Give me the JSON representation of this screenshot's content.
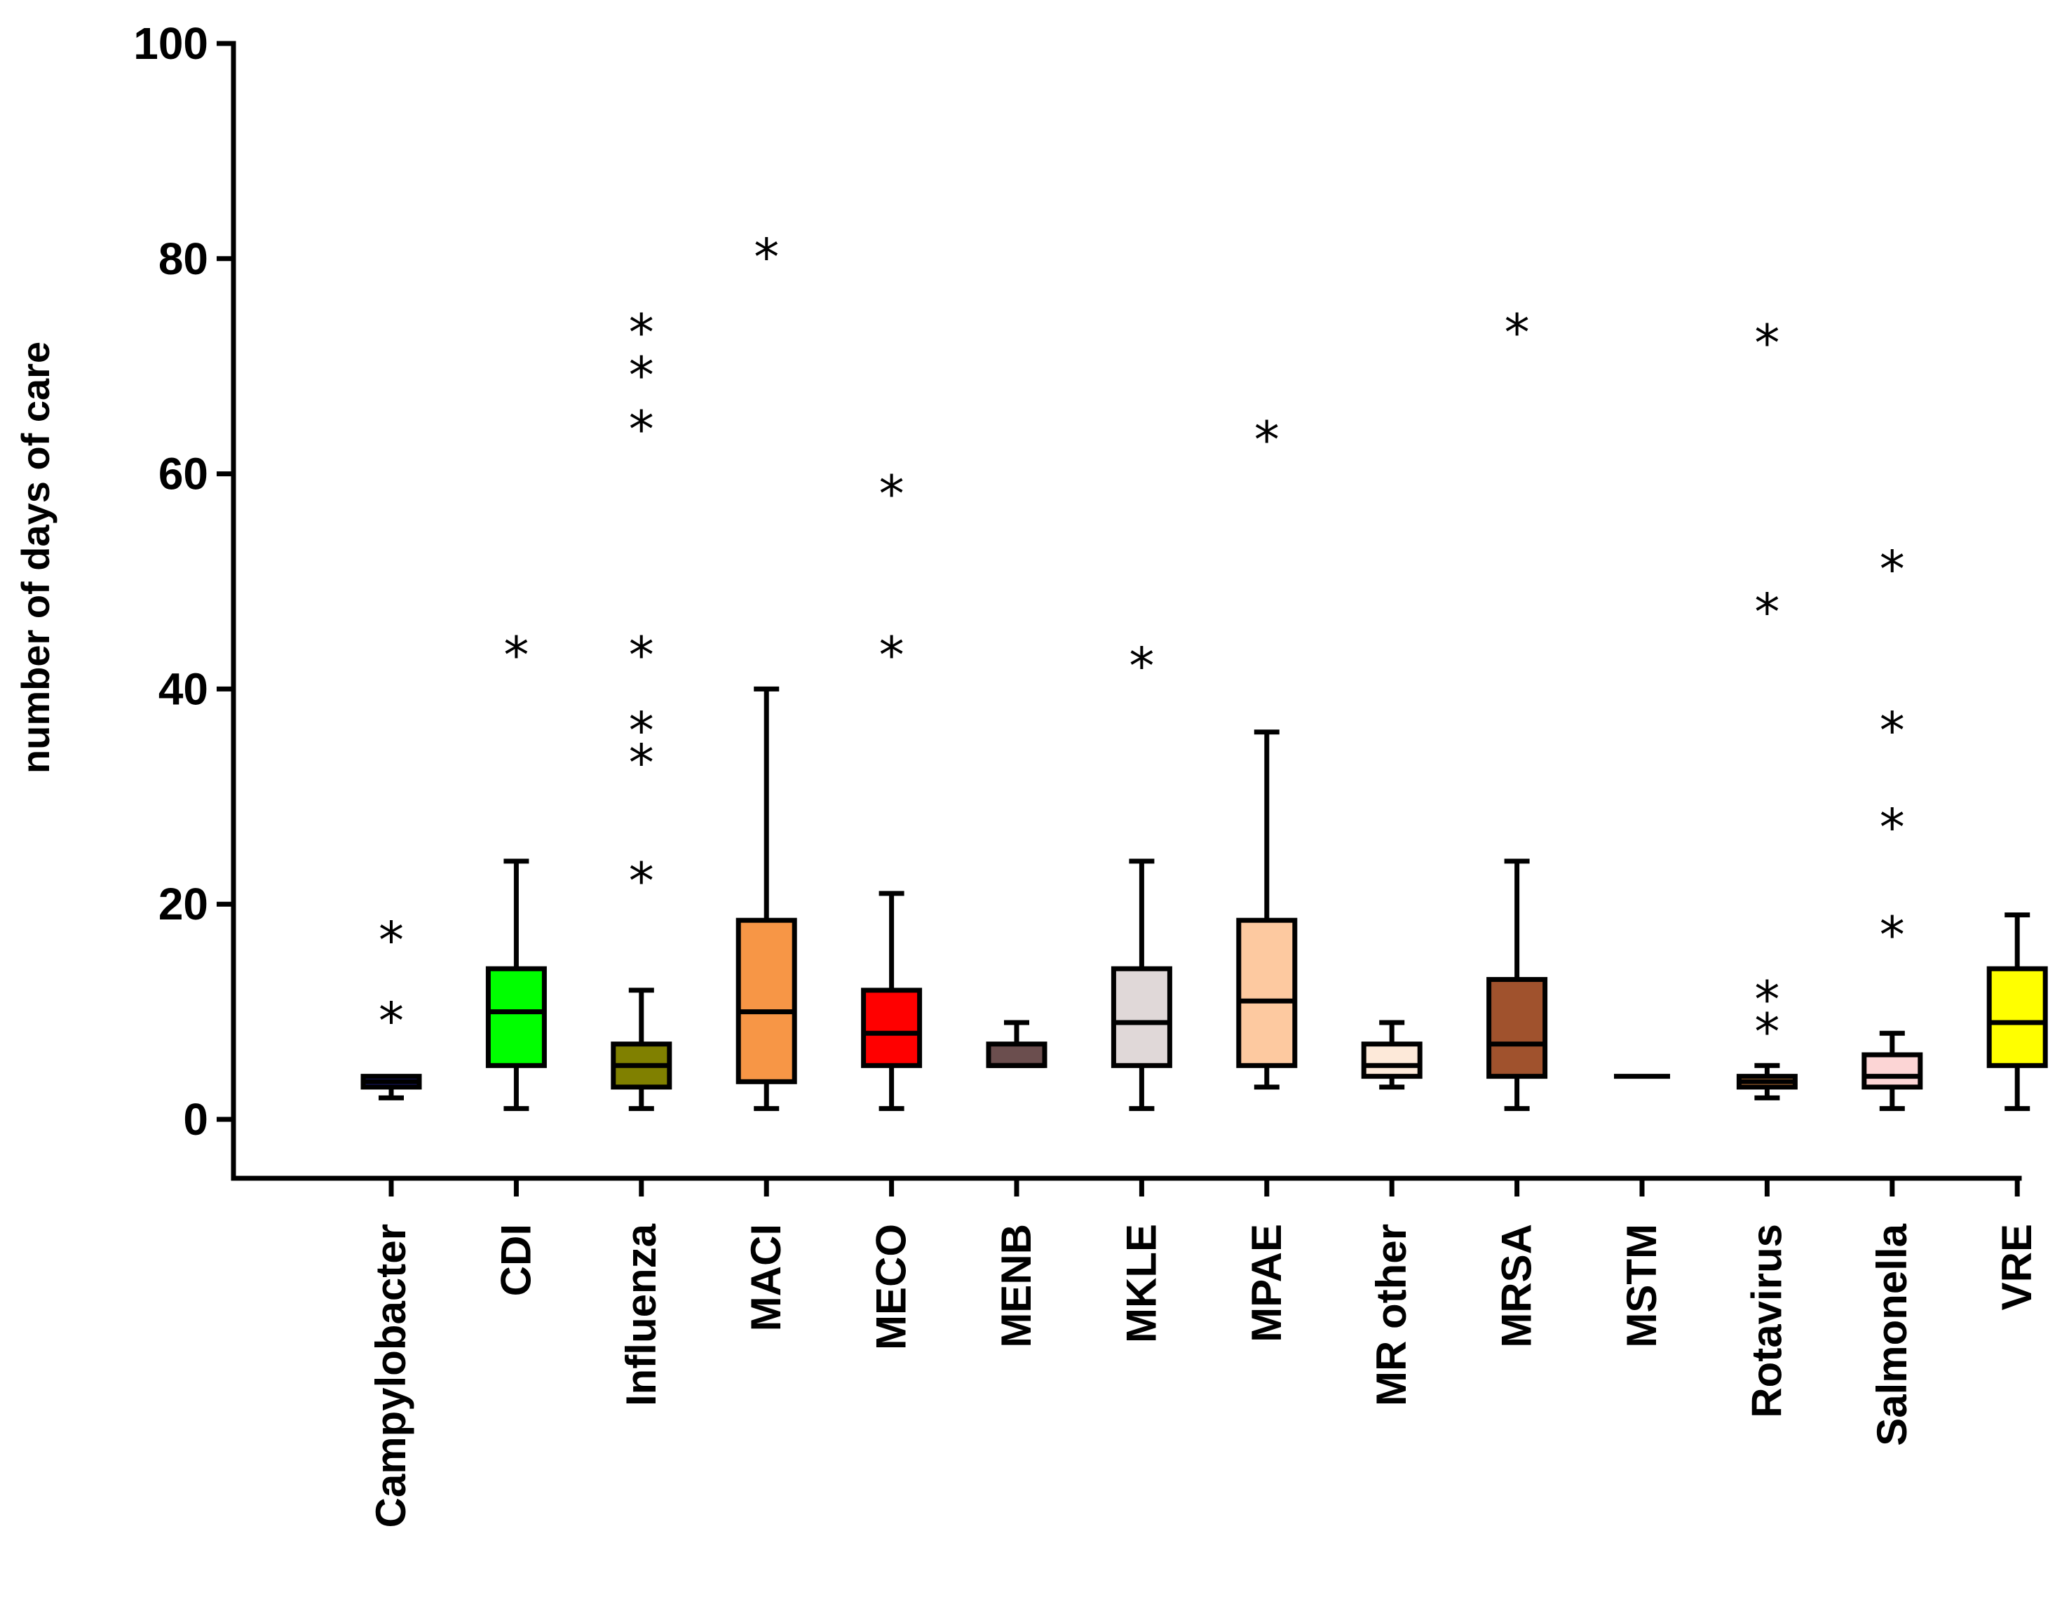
{
  "chart_data": {
    "type": "boxplot",
    "title": "",
    "xlabel": "",
    "ylabel": "number of days of care",
    "ylim": [
      0,
      100
    ],
    "yticks": [
      0,
      20,
      40,
      60,
      80,
      100
    ],
    "grid": false,
    "outlier_marker": "*",
    "categories": [
      "Campylobacter",
      "CDI",
      "Influenza",
      "MACI",
      "MECO",
      "MENB",
      "MKLE",
      "MPAE",
      "MR other",
      "MRSA",
      "MSTM",
      "Rotavirus",
      "Salmonella",
      "VRE"
    ],
    "boxes": [
      {
        "name": "Campylobacter",
        "color": "#1f1f8f",
        "min": 2,
        "q1": 3,
        "median": 3.5,
        "q3": 4,
        "max": 4,
        "outliers": [
          10,
          17.5
        ]
      },
      {
        "name": "CDI",
        "color": "#00ff00",
        "min": 1,
        "q1": 5,
        "median": 10,
        "q3": 14,
        "max": 24,
        "outliers": [
          44
        ]
      },
      {
        "name": "Influenza",
        "color": "#808000",
        "min": 1,
        "q1": 3,
        "median": 5,
        "q3": 7,
        "max": 12,
        "outliers": [
          23,
          34,
          37,
          44,
          65,
          70,
          74
        ]
      },
      {
        "name": "MACI",
        "color": "#f79646",
        "min": 1,
        "q1": 3.5,
        "median": 10,
        "q3": 18.5,
        "max": 40,
        "outliers": [
          81
        ]
      },
      {
        "name": "MECO",
        "color": "#ff0000",
        "min": 1,
        "q1": 5,
        "median": 8,
        "q3": 12,
        "max": 21,
        "outliers": [
          44,
          59
        ]
      },
      {
        "name": "MENB",
        "color": "#6b4e4e",
        "min": 5,
        "q1": 5,
        "median": 5,
        "q3": 7,
        "max": 9,
        "outliers": []
      },
      {
        "name": "MKLE",
        "color": "#e0d8d8",
        "min": 1,
        "q1": 5,
        "median": 9,
        "q3": 14,
        "max": 24,
        "outliers": [
          43
        ]
      },
      {
        "name": "MPAE",
        "color": "#fdc9a0",
        "min": 3,
        "q1": 5,
        "median": 11,
        "q3": 18.5,
        "max": 36,
        "outliers": [
          64
        ]
      },
      {
        "name": "MR other",
        "color": "#fde9d9",
        "min": 3,
        "q1": 4,
        "median": 5,
        "q3": 7,
        "max": 9,
        "outliers": []
      },
      {
        "name": "MRSA",
        "color": "#a0522d",
        "min": 1,
        "q1": 4,
        "median": 7,
        "q3": 13,
        "max": 24,
        "outliers": [
          74
        ]
      },
      {
        "name": "MSTM",
        "color": "#000000",
        "min": 4,
        "q1": 4,
        "median": 4,
        "q3": 4,
        "max": 4,
        "outliers": []
      },
      {
        "name": "Rotavirus",
        "color": "#f79646",
        "min": 2,
        "q1": 3,
        "median": 3.5,
        "q3": 4,
        "max": 5,
        "outliers": [
          9,
          12,
          48,
          73
        ]
      },
      {
        "name": "Salmonella",
        "color": "#fcd5d5",
        "min": 1,
        "q1": 3,
        "median": 4,
        "q3": 6,
        "max": 8,
        "outliers": [
          18,
          28,
          37,
          52
        ]
      },
      {
        "name": "VRE",
        "color": "#ffff00",
        "min": 1,
        "q1": 5,
        "median": 9,
        "q3": 14,
        "max": 19,
        "outliers": []
      }
    ]
  }
}
